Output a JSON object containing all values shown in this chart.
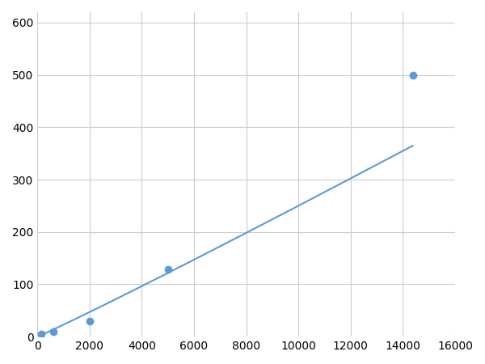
{
  "x": [
    156,
    625,
    2000,
    5000,
    14375
  ],
  "y": [
    5,
    10,
    30,
    128,
    500
  ],
  "line_color": "#5b9bd5",
  "marker_color": "#5b9bd5",
  "marker_size": 6,
  "xlim": [
    0,
    16000
  ],
  "ylim": [
    0,
    620
  ],
  "xticks": [
    0,
    2000,
    4000,
    6000,
    8000,
    10000,
    12000,
    14000,
    16000
  ],
  "yticks": [
    0,
    100,
    200,
    300,
    400,
    500,
    600
  ],
  "grid_color": "#cccccc",
  "background_color": "#ffffff",
  "tick_labelsize": 10
}
